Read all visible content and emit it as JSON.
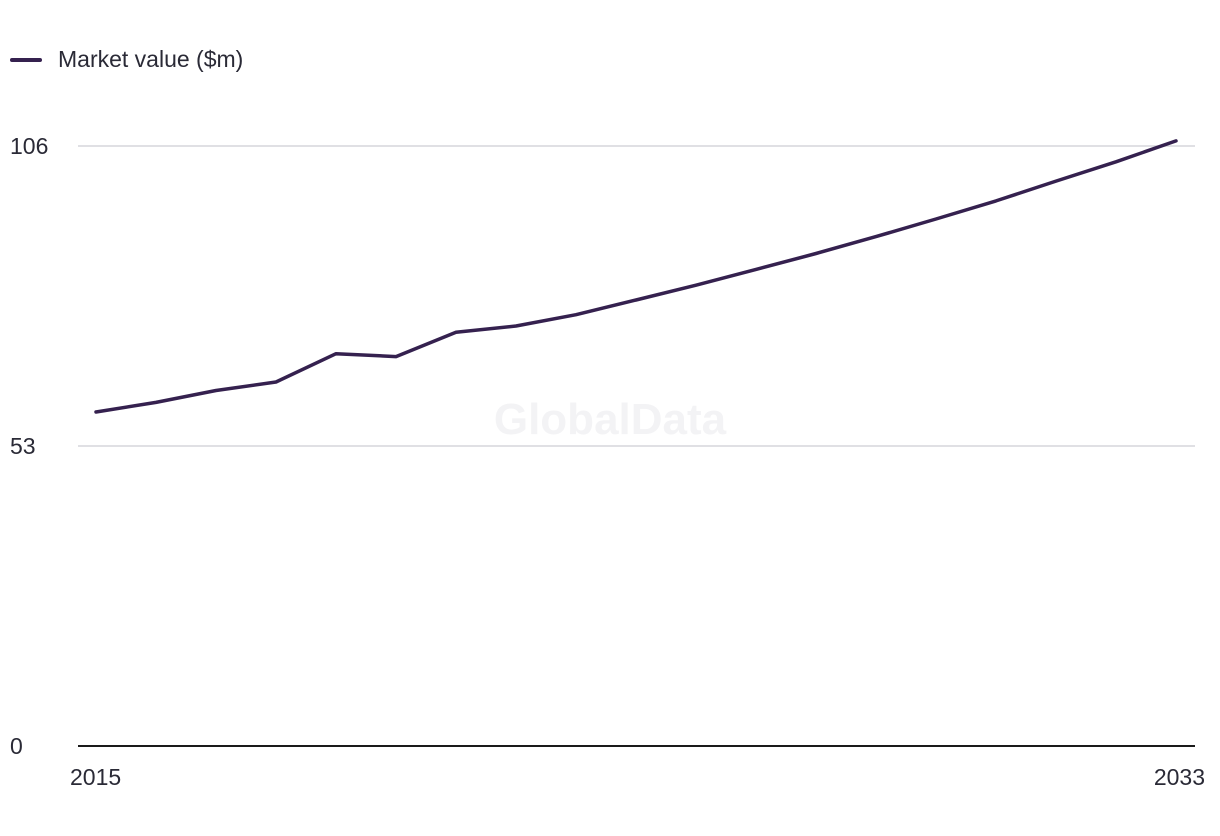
{
  "legend": {
    "label": "Market value ($m)"
  },
  "watermark": "GlobalData",
  "colors": {
    "series": "#35214f",
    "grid": "#d6d6dc",
    "axis": "#1a1a1a"
  },
  "chart_data": {
    "type": "line",
    "title": "",
    "xlabel": "",
    "ylabel": "",
    "x": [
      2015,
      2016,
      2017,
      2018,
      2019,
      2020,
      2021,
      2022,
      2023,
      2024,
      2025,
      2026,
      2027,
      2028,
      2029,
      2030,
      2031,
      2032,
      2033
    ],
    "x_tick_labels": [
      "2015",
      "2033"
    ],
    "y_tick_labels": [
      "0",
      "53",
      "106"
    ],
    "ylim": [
      0,
      106
    ],
    "grid": true,
    "legend_position": "top-left",
    "series": [
      {
        "name": "Market value ($m)",
        "values": [
          59.0,
          60.7,
          62.8,
          64.3,
          69.3,
          68.8,
          73.1,
          74.2,
          76.2,
          78.8,
          81.4,
          84.2,
          87.0,
          90.0,
          93.1,
          96.3,
          99.8,
          103.2,
          106.9
        ]
      }
    ]
  }
}
